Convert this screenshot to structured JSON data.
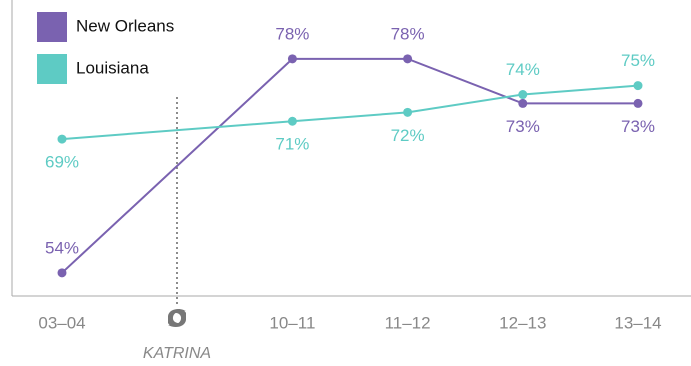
{
  "chart_data": {
    "type": "line",
    "categories": [
      "03–04",
      "10–11",
      "11–12",
      "12–13",
      "13–14"
    ],
    "series": [
      {
        "name": "New Orleans",
        "color": "#7a62b0",
        "values": [
          54,
          78,
          78,
          73,
          73
        ],
        "value_labels": [
          "54%",
          "78%",
          "78%",
          "73%",
          "73%"
        ]
      },
      {
        "name": "Louisiana",
        "color": "#5ecbc4",
        "values": [
          69,
          71,
          72,
          74,
          75
        ],
        "value_labels": [
          "69%",
          "71%",
          "72%",
          "74%",
          "75%"
        ]
      }
    ],
    "ylim": [
      51.4,
      84.6
    ],
    "annotation": "KATRINA",
    "legend": "top-left",
    "grid": false
  }
}
